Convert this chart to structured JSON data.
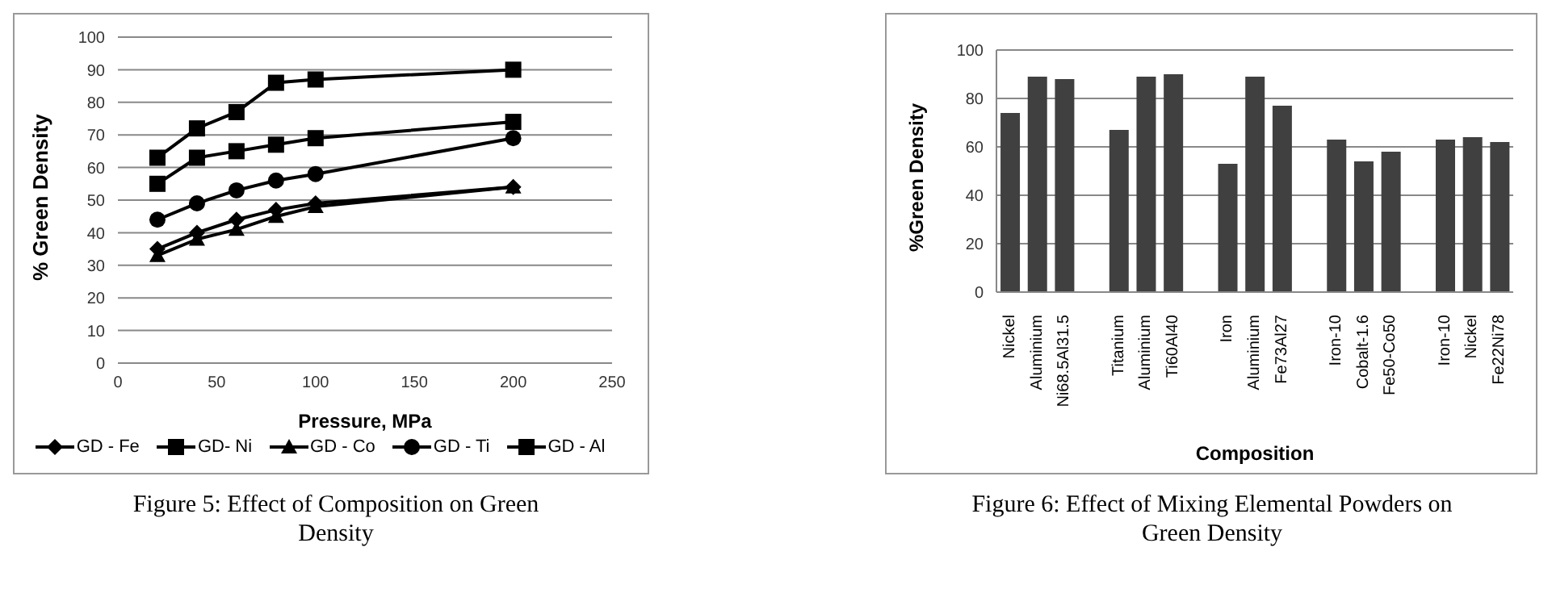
{
  "chart_data": [
    {
      "type": "line",
      "xlabel": "Pressure, MPa",
      "ylabel": "% Green Density",
      "x": [
        20,
        40,
        60,
        80,
        100,
        200
      ],
      "series": [
        {
          "name": "GD - Fe",
          "color": "#000000",
          "marker": "diamond",
          "values": [
            35,
            40,
            44,
            47,
            49,
            54
          ]
        },
        {
          "name": "GD- Ni",
          "color": "#000000",
          "marker": "square",
          "values": [
            55,
            63,
            65,
            67,
            69,
            74
          ]
        },
        {
          "name": "GD - Co",
          "color": "#000000",
          "marker": "triangle",
          "values": [
            33,
            38,
            41,
            45,
            48,
            54
          ]
        },
        {
          "name": "GD - Ti",
          "color": "#000000",
          "marker": "circle",
          "values": [
            44,
            49,
            53,
            56,
            58,
            69
          ]
        },
        {
          "name": "GD - Al",
          "color": "#000000",
          "marker": "square",
          "values": [
            63,
            72,
            77,
            86,
            87,
            90
          ]
        }
      ],
      "xlim": [
        0,
        250
      ],
      "xticks": [
        0,
        50,
        100,
        150,
        200,
        250
      ],
      "ylim": [
        0,
        100
      ],
      "yticks": [
        0,
        10,
        20,
        30,
        40,
        50,
        60,
        70,
        80,
        90,
        100
      ],
      "grid": "y",
      "legend": "bottom",
      "annotations": [
        "Figure 5: Effect of Composition on Green Density"
      ]
    },
    {
      "type": "bar",
      "xlabel": "Composition",
      "ylabel": "%Green Density",
      "categories": [
        "Nickel",
        "Aluminium",
        "Ni68.5Al31.5",
        null,
        "Titanium",
        "Aluminium",
        "Ti60Al40",
        null,
        "Iron",
        "Aluminium",
        "Fe73Al27",
        null,
        "Iron-10",
        "Cobalt-1.6",
        "Fe50-Co50",
        null,
        "Iron-10",
        "Nickel",
        "Fe22Ni78"
      ],
      "values": [
        74,
        89,
        88,
        null,
        67,
        89,
        90,
        null,
        53,
        89,
        77,
        null,
        63,
        54,
        58,
        null,
        63,
        64,
        62
      ],
      "color": "#404040",
      "ylim": [
        0,
        100
      ],
      "yticks": [
        0,
        20,
        40,
        60,
        80,
        100
      ],
      "grid": "y",
      "annotations": [
        "Figure 6: Effect of Mixing Elemental Powders on Green Density"
      ]
    }
  ]
}
